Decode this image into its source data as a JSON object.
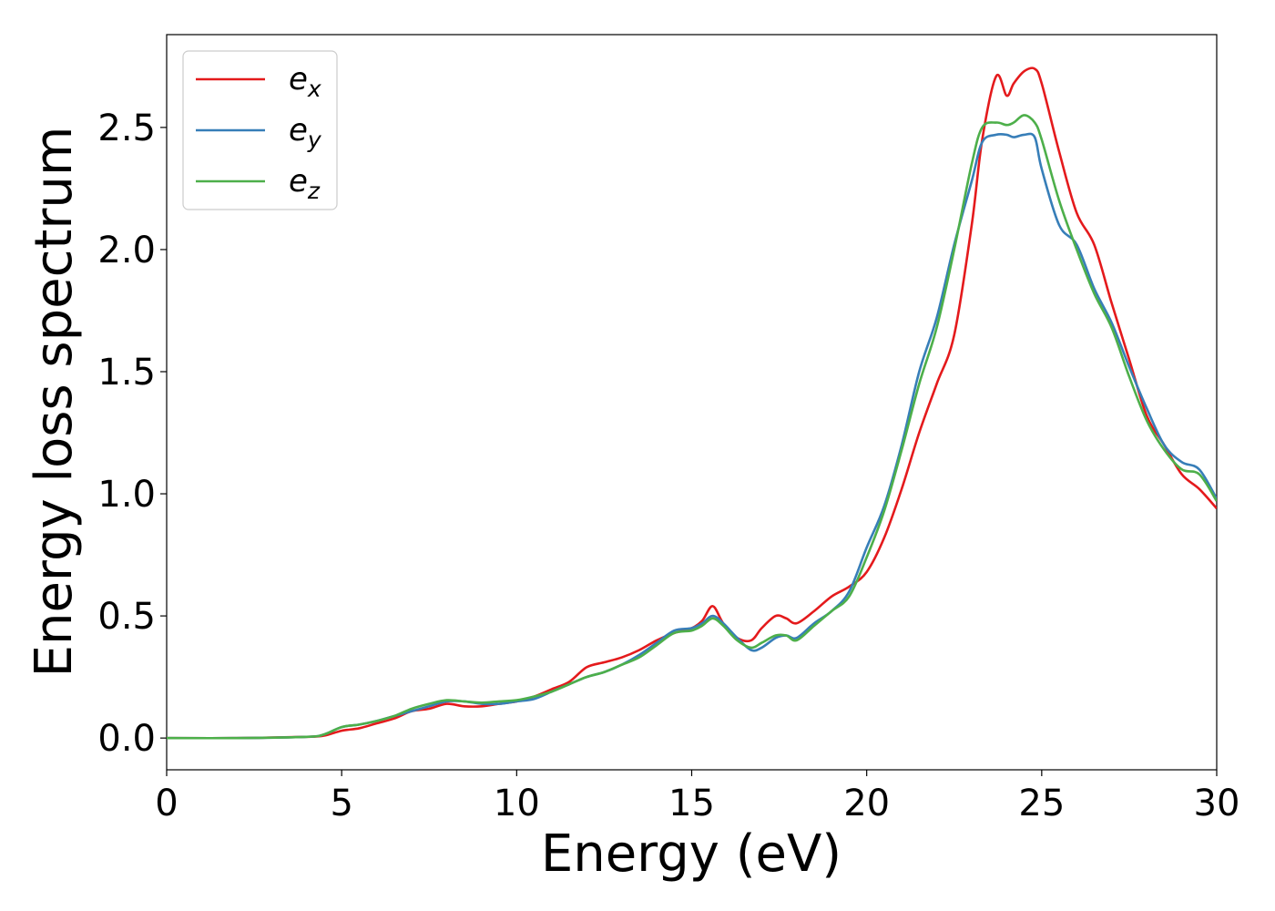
{
  "chart_data": {
    "type": "line",
    "xlabel": "Energy (eV)",
    "ylabel": "Energy loss spectrum",
    "xlim": [
      0,
      30
    ],
    "ylim": [
      -0.13,
      2.88
    ],
    "xticks": [
      0,
      5,
      10,
      15,
      20,
      25,
      30
    ],
    "xtick_labels": [
      "0",
      "5",
      "10",
      "15",
      "20",
      "25",
      "30"
    ],
    "yticks": [
      0.0,
      0.5,
      1.0,
      1.5,
      2.0,
      2.5
    ],
    "ytick_labels": [
      "0.0",
      "0.5",
      "1.0",
      "1.5",
      "2.0",
      "2.5"
    ],
    "grid": false,
    "legend_position": "top-left",
    "series": [
      {
        "name": "e",
        "sub": "x",
        "color": "#e41a1c",
        "x": [
          0,
          2,
          4,
          4.5,
          5,
          5.5,
          6,
          6.5,
          7,
          7.5,
          8,
          8.5,
          9,
          9.5,
          10,
          10.5,
          11,
          11.5,
          12,
          12.5,
          13,
          13.5,
          14,
          14.5,
          15,
          15.3,
          15.6,
          15.9,
          16.3,
          16.7,
          17,
          17.4,
          17.7,
          18,
          18.5,
          19,
          19.5,
          20,
          20.5,
          21,
          21.5,
          22,
          22.5,
          23,
          23.3,
          23.7,
          24,
          24.2,
          24.5,
          24.8,
          25,
          25.5,
          26,
          26.5,
          27,
          27.5,
          28,
          28.5,
          29,
          29.5,
          30
        ],
        "y": [
          0,
          0,
          0.005,
          0.01,
          0.03,
          0.04,
          0.06,
          0.08,
          0.11,
          0.12,
          0.14,
          0.13,
          0.13,
          0.14,
          0.15,
          0.17,
          0.2,
          0.23,
          0.29,
          0.31,
          0.33,
          0.36,
          0.4,
          0.43,
          0.45,
          0.48,
          0.54,
          0.47,
          0.41,
          0.4,
          0.45,
          0.5,
          0.49,
          0.47,
          0.52,
          0.58,
          0.62,
          0.68,
          0.82,
          1.02,
          1.25,
          1.45,
          1.65,
          2.1,
          2.45,
          2.71,
          2.63,
          2.68,
          2.73,
          2.74,
          2.68,
          2.4,
          2.15,
          2.02,
          1.78,
          1.55,
          1.32,
          1.2,
          1.08,
          1.02,
          0.94
        ]
      },
      {
        "name": "e",
        "sub": "y",
        "color": "#377eb8",
        "x": [
          0,
          2,
          4,
          4.5,
          5,
          5.5,
          6,
          6.5,
          7,
          7.5,
          8,
          8.5,
          9,
          9.5,
          10,
          10.5,
          11,
          11.5,
          12,
          12.5,
          13,
          13.5,
          14,
          14.5,
          15,
          15.3,
          15.6,
          15.9,
          16.3,
          16.7,
          17,
          17.4,
          17.7,
          18,
          18.5,
          19,
          19.5,
          20,
          20.5,
          21,
          21.5,
          22,
          22.5,
          23,
          23.3,
          23.7,
          24,
          24.2,
          24.5,
          24.8,
          25,
          25.5,
          26,
          26.5,
          27,
          27.5,
          28,
          28.5,
          29,
          29.5,
          30
        ],
        "y": [
          0,
          0,
          0.005,
          0.015,
          0.045,
          0.055,
          0.07,
          0.09,
          0.11,
          0.13,
          0.15,
          0.15,
          0.14,
          0.14,
          0.15,
          0.16,
          0.19,
          0.22,
          0.25,
          0.27,
          0.3,
          0.34,
          0.39,
          0.44,
          0.45,
          0.47,
          0.5,
          0.47,
          0.41,
          0.36,
          0.37,
          0.41,
          0.42,
          0.41,
          0.47,
          0.52,
          0.6,
          0.78,
          0.95,
          1.2,
          1.5,
          1.72,
          2.02,
          2.28,
          2.44,
          2.47,
          2.47,
          2.46,
          2.47,
          2.46,
          2.33,
          2.1,
          2.02,
          1.84,
          1.7,
          1.52,
          1.35,
          1.2,
          1.13,
          1.1,
          0.98
        ]
      },
      {
        "name": "e",
        "sub": "z",
        "color": "#4daf4a",
        "x": [
          0,
          2,
          4,
          4.5,
          5,
          5.5,
          6,
          6.5,
          7,
          7.5,
          8,
          8.5,
          9,
          9.5,
          10,
          10.5,
          11,
          11.5,
          12,
          12.5,
          13,
          13.5,
          14,
          14.5,
          15,
          15.3,
          15.6,
          15.9,
          16.3,
          16.7,
          17,
          17.4,
          17.7,
          18,
          18.5,
          19,
          19.5,
          20,
          20.5,
          21,
          21.5,
          22,
          22.5,
          23,
          23.3,
          23.7,
          24,
          24.2,
          24.5,
          24.8,
          25,
          25.5,
          26,
          26.5,
          27,
          27.5,
          28,
          28.5,
          29,
          29.5,
          30
        ],
        "y": [
          0,
          0,
          0.005,
          0.015,
          0.045,
          0.055,
          0.07,
          0.09,
          0.12,
          0.14,
          0.155,
          0.15,
          0.145,
          0.15,
          0.155,
          0.17,
          0.19,
          0.22,
          0.25,
          0.27,
          0.3,
          0.33,
          0.38,
          0.43,
          0.44,
          0.46,
          0.49,
          0.46,
          0.4,
          0.37,
          0.39,
          0.42,
          0.42,
          0.4,
          0.46,
          0.52,
          0.58,
          0.74,
          0.93,
          1.18,
          1.45,
          1.68,
          2.0,
          2.35,
          2.5,
          2.52,
          2.51,
          2.52,
          2.55,
          2.52,
          2.45,
          2.2,
          2.0,
          1.82,
          1.68,
          1.48,
          1.3,
          1.18,
          1.1,
          1.08,
          0.97
        ]
      }
    ]
  }
}
